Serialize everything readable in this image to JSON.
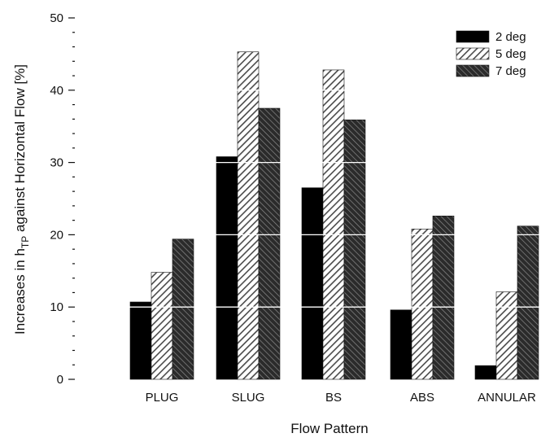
{
  "chart_data": {
    "type": "bar",
    "title": "",
    "xlabel": "Flow Pattern",
    "ylabel_prefix": "Increases in h",
    "ylabel_sub": "TP",
    "ylabel_suffix": " against Horizontal Flow [%]",
    "ylim": [
      0,
      50
    ],
    "yticks": [
      0,
      10,
      20,
      30,
      40,
      50
    ],
    "categories": [
      "PLUG",
      "SLUG",
      "BS",
      "ABS",
      "ANNULAR"
    ],
    "series": [
      {
        "name": "2 deg",
        "values": [
          10.7,
          30.8,
          26.5,
          9.6,
          1.9
        ]
      },
      {
        "name": "5 deg",
        "values": [
          14.8,
          45.3,
          42.8,
          20.8,
          12.1
        ]
      },
      {
        "name": "7 deg",
        "values": [
          19.4,
          37.5,
          35.9,
          22.6,
          21.2
        ]
      }
    ],
    "legend_position": "top-right",
    "grid": "white horizontal lines over bars"
  }
}
